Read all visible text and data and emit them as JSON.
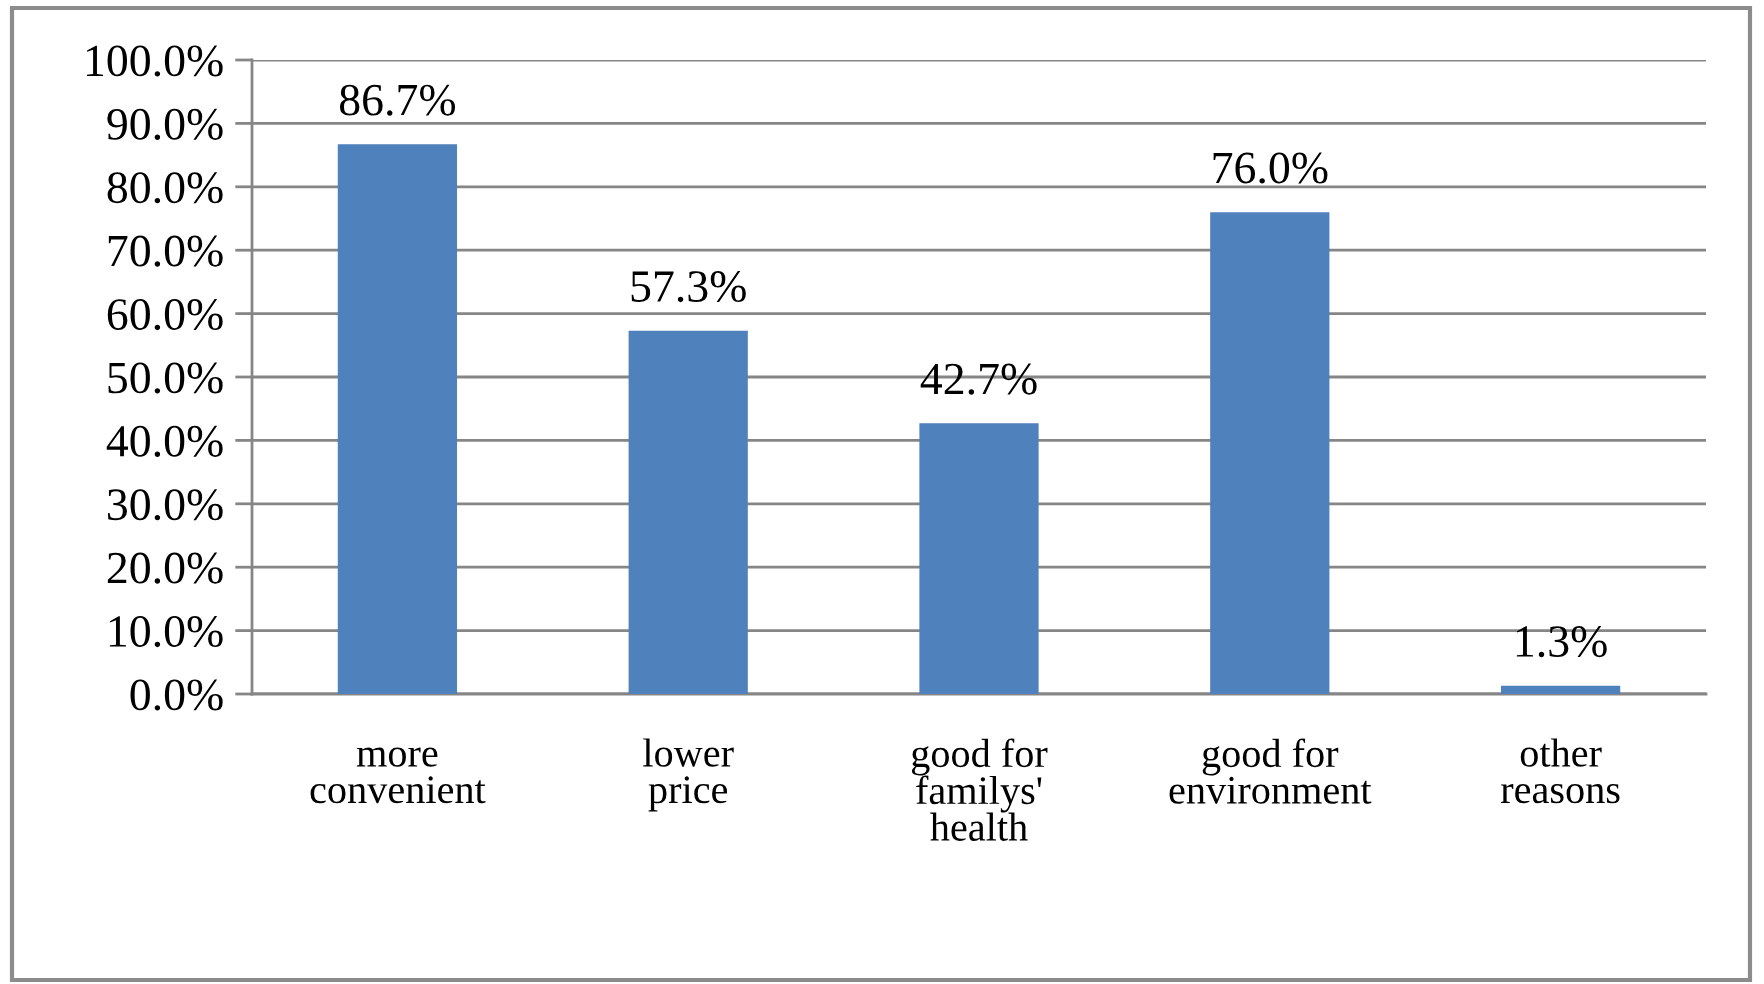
{
  "chart_data": {
    "type": "bar",
    "categories": [
      "more\nconvenient",
      "lower\nprice",
      "good for\nfamilys'\nhealth",
      "good for\nenvironment",
      "other\nreasons"
    ],
    "values": [
      86.7,
      57.3,
      42.7,
      76.0,
      1.3
    ],
    "value_labels": [
      "86.7%",
      "57.3%",
      "42.7%",
      "76.0%",
      "1.3%"
    ],
    "color": "#4f81bd",
    "ylim": [
      0,
      100
    ],
    "yticks": [
      {
        "value": 0,
        "label": "0.0%"
      },
      {
        "value": 10,
        "label": "10.0%"
      },
      {
        "value": 20,
        "label": "20.0%"
      },
      {
        "value": 30,
        "label": "30.0%"
      },
      {
        "value": 40,
        "label": "40.0%"
      },
      {
        "value": 50,
        "label": "50.0%"
      },
      {
        "value": 60,
        "label": "60.0%"
      },
      {
        "value": 70,
        "label": "70.0%"
      },
      {
        "value": 80,
        "label": "80.0%"
      },
      {
        "value": 90,
        "label": "90.0%"
      },
      {
        "value": 100,
        "label": "100.0%"
      }
    ],
    "grid": "y"
  }
}
